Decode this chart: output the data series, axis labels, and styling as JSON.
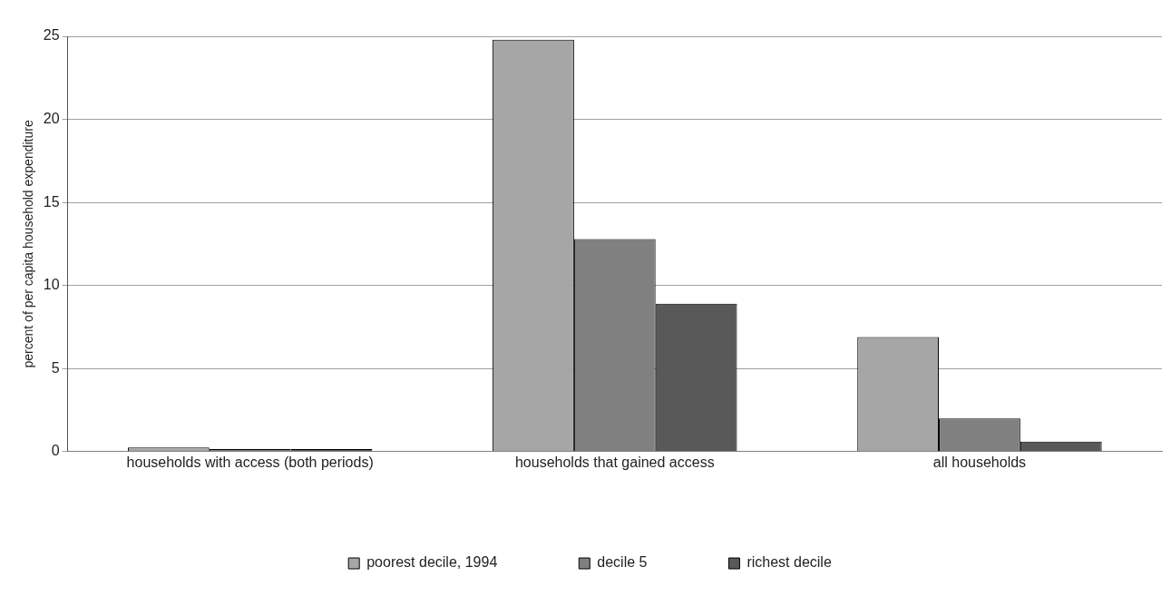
{
  "chart_data": {
    "type": "bar",
    "ylabel": "percent of per capita household expenditure",
    "categories": [
      "households with access (both periods)",
      "households that gained access",
      "all households"
    ],
    "series": [
      {
        "name": "poorest decile, 1994",
        "color": "#a6a6a6",
        "values": [
          0.25,
          24.8,
          6.9
        ]
      },
      {
        "name": "decile 5",
        "color": "#808080",
        "values": [
          0.15,
          12.8,
          2.0
        ]
      },
      {
        "name": "richest decile",
        "color": "#595959",
        "values": [
          0.15,
          8.9,
          0.6
        ]
      }
    ],
    "ylim": [
      0,
      25
    ],
    "yticks": [
      0,
      5,
      10,
      15,
      20,
      25
    ],
    "grid": "y",
    "legend": "bottom"
  }
}
